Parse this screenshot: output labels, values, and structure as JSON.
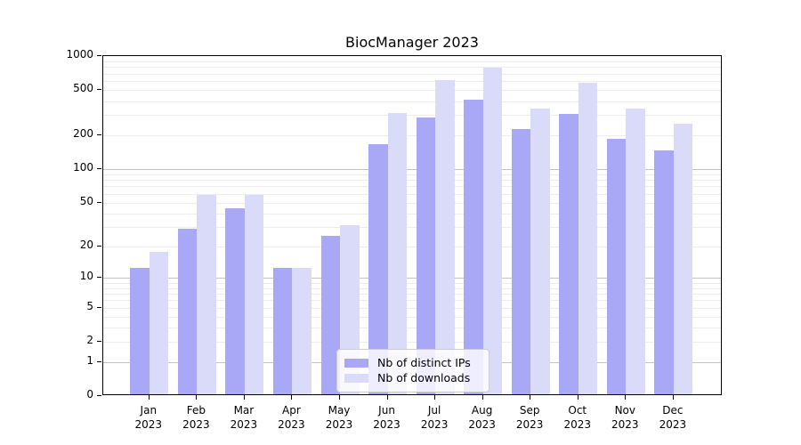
{
  "title": "BiocManager 2023",
  "chart_data": {
    "type": "bar",
    "title": "BiocManager 2023",
    "scale": "log1p",
    "categories": [
      "Jan",
      "Feb",
      "Mar",
      "Apr",
      "May",
      "Jun",
      "Jul",
      "Aug",
      "Sep",
      "Oct",
      "Nov",
      "Dec"
    ],
    "year_label": "2023",
    "series": [
      {
        "name": "Nb of distinct IPs",
        "color": "#a8a8f7",
        "values": [
          12,
          28,
          43,
          12,
          24,
          160,
          275,
          400,
          220,
          295,
          180,
          142
        ]
      },
      {
        "name": "Nb of downloads",
        "color": "#dadaf9",
        "values": [
          17,
          57,
          57,
          12,
          30,
          300,
          590,
          760,
          330,
          565,
          330,
          245
        ]
      }
    ],
    "y_ticks": [
      0,
      1,
      2,
      5,
      10,
      20,
      50,
      100,
      200,
      500,
      1000
    ],
    "ylim": [
      0,
      1000
    ],
    "major_gridlines": [
      1,
      10,
      100
    ],
    "grid": true,
    "legend_position": "lower center"
  },
  "colors": {
    "background": "#ffffff",
    "axis": "#000000",
    "major_grid": "#c3c3c3",
    "minor_grid": "#ededed",
    "legend_border": "#cccccc"
  }
}
